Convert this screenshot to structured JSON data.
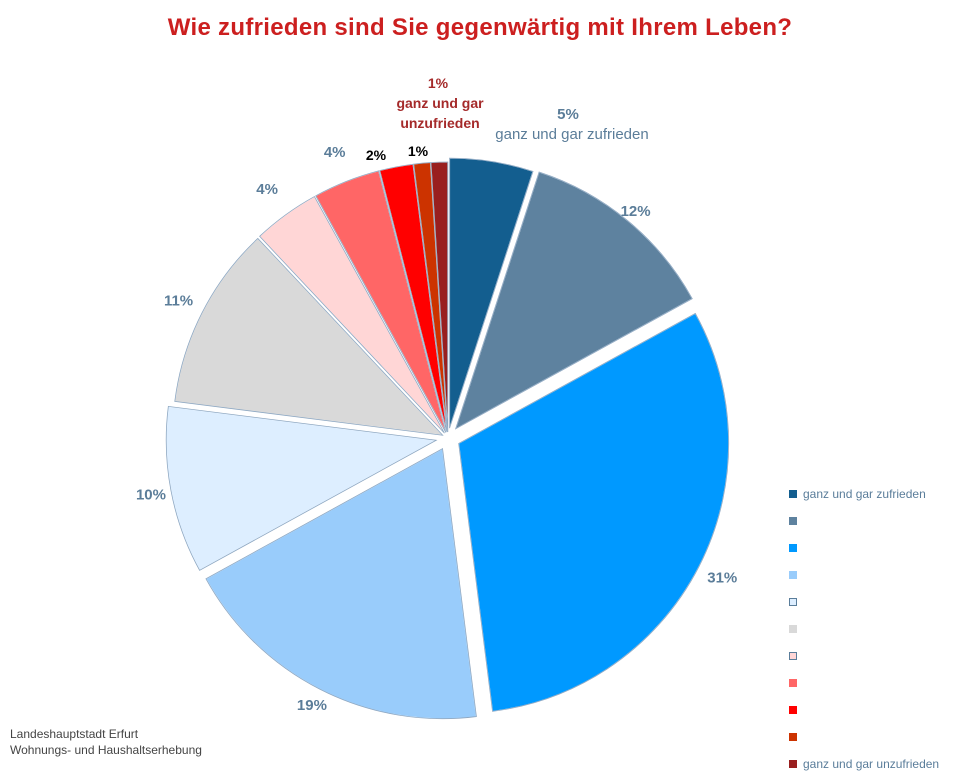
{
  "chart_data": {
    "type": "pie",
    "title": "Wie zufrieden sind Sie gegenwärtig mit Ihrem Leben?",
    "slices": [
      {
        "value": 5,
        "value_label": "5%",
        "label": "ganz und gar zufrieden",
        "legend": "ganz und gar zufrieden",
        "color": "#135e8f",
        "label_color": "#5b7d99"
      },
      {
        "value": 12,
        "value_label": "12%",
        "label": "",
        "legend": "",
        "color": "#5e829f",
        "label_color": "#5b7d99"
      },
      {
        "value": 31,
        "value_label": "31%",
        "label": "",
        "legend": "",
        "color": "#0099ff",
        "label_color": "#5b7d99"
      },
      {
        "value": 19,
        "value_label": "19%",
        "label": "",
        "legend": "",
        "color": "#99ccfb",
        "label_color": "#5b7d99"
      },
      {
        "value": 10,
        "value_label": "10%",
        "label": "",
        "legend": "",
        "color": "#ddeeff",
        "label_color": "#5b7d99"
      },
      {
        "value": 11,
        "value_label": "11%",
        "label": "",
        "legend": "",
        "color": "#d9d9d9",
        "label_color": "#5b7d99"
      },
      {
        "value": 4,
        "value_label": "4%",
        "label": "",
        "legend": "",
        "color": "#ffd6d6",
        "label_color": "#5b7d99"
      },
      {
        "value": 4,
        "value_label": "4%",
        "label": "",
        "legend": "",
        "color": "#ff6666",
        "label_color": "#5b7d99"
      },
      {
        "value": 2,
        "value_label": "2%",
        "label": "",
        "legend": "",
        "color": "#ff0000",
        "label_color": "#000000"
      },
      {
        "value": 1,
        "value_label": "1%",
        "label": "",
        "legend": "",
        "color": "#cc3300",
        "label_color": "#000000"
      },
      {
        "value": 1,
        "value_label": "1%",
        "label": "ganz und gar unzufrieden",
        "legend": "ganz und gar unzufrieden",
        "color": "#991f1f",
        "label_color": "#a52a2a"
      }
    ],
    "legend_position": "right"
  },
  "source": {
    "line1": "Landeshauptstadt Erfurt",
    "line2": "Wohnungs- und Haushaltserhebung"
  },
  "colors": {
    "title": "#cc1f1f",
    "legend_text": "#5a7d9a"
  }
}
